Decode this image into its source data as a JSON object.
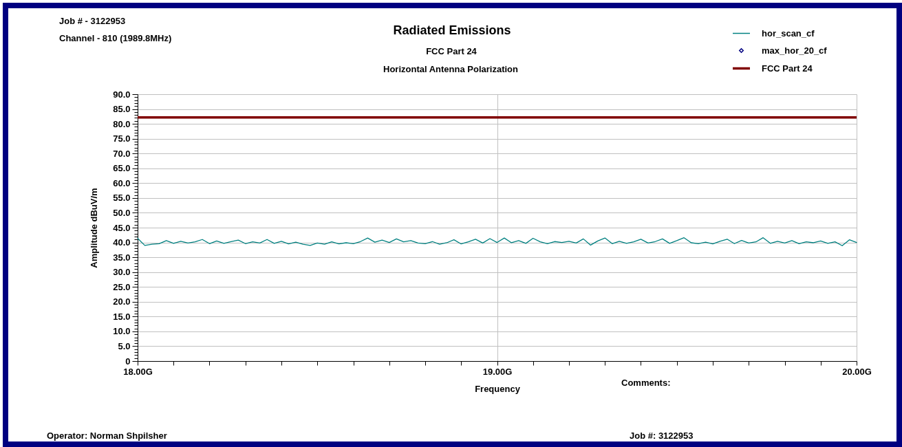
{
  "chart_data": {
    "type": "line",
    "title": "Radiated Emissions",
    "subtitle": "FCC Part 24",
    "xlabel": "Frequency",
    "ylabel": "Amplitude dBuV/m",
    "annotations": [
      "Job # - 3122953",
      "Channel - 810 (1989.8MHz)",
      "Horizontal Antenna Polarization",
      "Comments:",
      "Operator: Norman Shpilsher",
      "Job #: 3122953"
    ],
    "series": [
      {
        "name": "hor_scan_cf",
        "color": "#008080",
        "x": [
          18,
          18.02,
          18.04,
          18.06,
          18.08,
          18.1,
          18.12,
          18.14,
          18.16,
          18.18,
          18.2,
          18.22,
          18.24,
          18.26,
          18.28,
          18.3,
          18.32,
          18.34,
          18.36,
          18.38,
          18.4,
          18.42,
          18.44,
          18.46,
          18.48,
          18.5,
          18.52,
          18.54,
          18.56,
          18.58,
          18.6,
          18.62,
          18.64,
          18.66,
          18.68,
          18.7,
          18.72,
          18.74,
          18.76,
          18.78,
          18.8,
          18.82,
          18.84,
          18.86,
          18.88,
          18.9,
          18.92,
          18.94,
          18.96,
          18.98,
          19,
          19.02,
          19.04,
          19.06,
          19.08,
          19.1,
          19.12,
          19.14,
          19.16,
          19.18,
          19.2,
          19.22,
          19.24,
          19.26,
          19.28,
          19.3,
          19.32,
          19.34,
          19.36,
          19.38,
          19.4,
          19.42,
          19.44,
          19.46,
          19.48,
          19.5,
          19.52,
          19.54,
          19.56,
          19.58,
          19.6,
          19.62,
          19.64,
          19.66,
          19.68,
          19.7,
          19.72,
          19.74,
          19.76,
          19.78,
          19.8,
          19.82,
          19.84,
          19.86,
          19.88,
          19.9,
          19.92,
          19.94,
          19.96,
          19.98,
          20
        ],
        "values": [
          41.4,
          39.0,
          39.4,
          39.6,
          40.6,
          39.7,
          40.4,
          39.8,
          40.2,
          41.0,
          39.6,
          40.5,
          39.7,
          40.3,
          40.8,
          39.6,
          40.2,
          39.8,
          41.0,
          39.7,
          40.4,
          39.5,
          40.1,
          39.4,
          39.0,
          39.8,
          39.4,
          40.2,
          39.5,
          39.9,
          39.6,
          40.3,
          41.5,
          40.1,
          40.8,
          40.0,
          41.2,
          40.2,
          40.6,
          39.8,
          39.6,
          40.3,
          39.4,
          39.9,
          40.9,
          39.5,
          40.2,
          41.1,
          39.8,
          41.3,
          40.0,
          41.5,
          39.9,
          40.6,
          39.7,
          41.4,
          40.2,
          39.6,
          40.3,
          40.0,
          40.4,
          39.8,
          41.2,
          39.1,
          40.5,
          41.5,
          39.6,
          40.4,
          39.7,
          40.2,
          41.1,
          39.8,
          40.3,
          41.2,
          39.7,
          40.6,
          41.6,
          39.9,
          39.6,
          40.1,
          39.5,
          40.4,
          41.1,
          39.6,
          40.7,
          39.8,
          40.2,
          41.6,
          39.7,
          40.4,
          39.8,
          40.6,
          39.6,
          40.2,
          39.9,
          40.5,
          39.7,
          40.2,
          38.9,
          40.9,
          40.0
        ]
      },
      {
        "name": "max_hor_20_cf",
        "color": "#000080",
        "type": "scatter",
        "marker": "diamond"
      }
    ],
    "ref_lines": [
      {
        "axis": "y",
        "value": 82.2,
        "label": "FCC Part 24",
        "color": "#800000"
      }
    ],
    "xlim": [
      18,
      20
    ],
    "ylim": [
      0,
      90
    ],
    "xticks": [
      {
        "value": 18,
        "label": "18.00G"
      },
      {
        "value": 18.1,
        "label": null
      },
      {
        "value": 18.2,
        "label": null
      },
      {
        "value": 18.3,
        "label": null
      },
      {
        "value": 18.4,
        "label": null
      },
      {
        "value": 18.5,
        "label": null
      },
      {
        "value": 18.6,
        "label": null
      },
      {
        "value": 18.7,
        "label": null
      },
      {
        "value": 18.8,
        "label": null
      },
      {
        "value": 18.9,
        "label": null
      },
      {
        "value": 19,
        "label": "19.00G"
      },
      {
        "value": 19.1,
        "label": null
      },
      {
        "value": 19.2,
        "label": null
      },
      {
        "value": 19.3,
        "label": null
      },
      {
        "value": 19.4,
        "label": null
      },
      {
        "value": 19.5,
        "label": null
      },
      {
        "value": 19.6,
        "label": null
      },
      {
        "value": 19.7,
        "label": null
      },
      {
        "value": 19.8,
        "label": null
      },
      {
        "value": 19.9,
        "label": null
      },
      {
        "value": 20,
        "label": "20.00G"
      }
    ],
    "yticks": [
      0,
      {
        "value": 1,
        "label": null
      },
      {
        "value": 2,
        "label": null
      },
      {
        "value": 3,
        "label": null
      },
      {
        "value": 4,
        "label": null
      },
      {
        "value": 5,
        "label": "5.0"
      },
      {
        "value": 6,
        "label": null
      },
      {
        "value": 7,
        "label": null
      },
      {
        "value": 8,
        "label": null
      },
      {
        "value": 9,
        "label": null
      },
      {
        "value": 10,
        "label": "10.0"
      },
      {
        "value": 11,
        "label": null
      },
      {
        "value": 12,
        "label": null
      },
      {
        "value": 13,
        "label": null
      },
      {
        "value": 14,
        "label": null
      },
      {
        "value": 15,
        "label": "15.0"
      },
      {
        "value": 16,
        "label": null
      },
      {
        "value": 17,
        "label": null
      },
      {
        "value": 18,
        "label": null
      },
      {
        "value": 19,
        "label": null
      },
      {
        "value": 20,
        "label": "20.0"
      },
      {
        "value": 21,
        "label": null
      },
      {
        "value": 22,
        "label": null
      },
      {
        "value": 23,
        "label": null
      },
      {
        "value": 24,
        "label": null
      },
      {
        "value": 25,
        "label": "25.0"
      },
      {
        "value": 26,
        "label": null
      },
      {
        "value": 27,
        "label": null
      },
      {
        "value": 28,
        "label": null
      },
      {
        "value": 29,
        "label": null
      },
      {
        "value": 30,
        "label": "30.0"
      },
      {
        "value": 31,
        "label": null
      },
      {
        "value": 32,
        "label": null
      },
      {
        "value": 33,
        "label": null
      },
      {
        "value": 34,
        "label": null
      },
      {
        "value": 35,
        "label": "35.0"
      },
      {
        "value": 36,
        "label": null
      },
      {
        "value": 37,
        "label": null
      },
      {
        "value": 38,
        "label": null
      },
      {
        "value": 39,
        "label": null
      },
      {
        "value": 40,
        "label": "40.0"
      },
      {
        "value": 41,
        "label": null
      },
      {
        "value": 42,
        "label": null
      },
      {
        "value": 43,
        "label": null
      },
      {
        "value": 44,
        "label": null
      },
      {
        "value": 45,
        "label": "45.0"
      },
      {
        "value": 46,
        "label": null
      },
      {
        "value": 47,
        "label": null
      },
      {
        "value": 48,
        "label": null
      },
      {
        "value": 49,
        "label": null
      },
      {
        "value": 50,
        "label": "50.0"
      },
      {
        "value": 51,
        "label": null
      },
      {
        "value": 52,
        "label": null
      },
      {
        "value": 53,
        "label": null
      },
      {
        "value": 54,
        "label": null
      },
      {
        "value": 55,
        "label": "55.0"
      },
      {
        "value": 56,
        "label": null
      },
      {
        "value": 57,
        "label": null
      },
      {
        "value": 58,
        "label": null
      },
      {
        "value": 59,
        "label": null
      },
      {
        "value": 60,
        "label": "60.0"
      },
      {
        "value": 61,
        "label": null
      },
      {
        "value": 62,
        "label": null
      },
      {
        "value": 63,
        "label": null
      },
      {
        "value": 64,
        "label": null
      },
      {
        "value": 65,
        "label": "65.0"
      },
      {
        "value": 66,
        "label": null
      },
      {
        "value": 67,
        "label": null
      },
      {
        "value": 68,
        "label": null
      },
      {
        "value": 69,
        "label": null
      },
      {
        "value": 70,
        "label": "70.0"
      },
      {
        "value": 71,
        "label": null
      },
      {
        "value": 72,
        "label": null
      },
      {
        "value": 73,
        "label": null
      },
      {
        "value": 74,
        "label": null
      },
      {
        "value": 75,
        "label": "75.0"
      },
      {
        "value": 76,
        "label": null
      },
      {
        "value": 77,
        "label": null
      },
      {
        "value": 78,
        "label": null
      },
      {
        "value": 79,
        "label": null
      },
      {
        "value": 80,
        "label": "80.0"
      },
      {
        "value": 81,
        "label": null
      },
      {
        "value": 82,
        "label": null
      },
      {
        "value": 83,
        "label": null
      },
      {
        "value": 84,
        "label": null
      },
      {
        "value": 85,
        "label": "85.0"
      },
      {
        "value": 86,
        "label": null
      },
      {
        "value": 87,
        "label": null
      },
      {
        "value": 88,
        "label": null
      },
      {
        "value": 89,
        "label": null
      },
      {
        "value": 90,
        "label": "90.0"
      }
    ],
    "grid": true,
    "legend": "top right"
  }
}
